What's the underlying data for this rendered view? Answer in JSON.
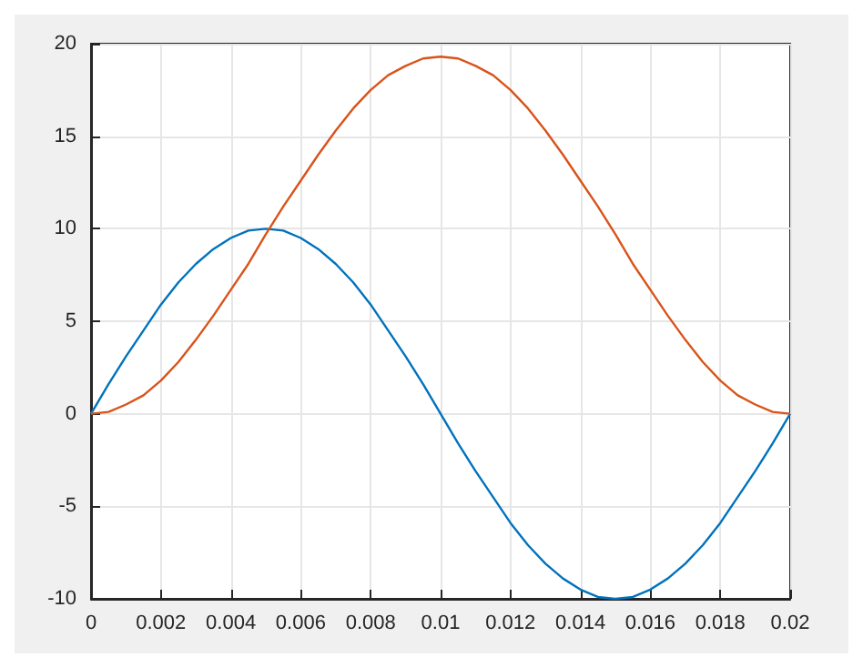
{
  "chart_data": {
    "type": "line",
    "x": [
      0,
      0.0005,
      0.001,
      0.0015,
      0.002,
      0.0025,
      0.003,
      0.0035,
      0.004,
      0.0045,
      0.005,
      0.0055,
      0.006,
      0.0065,
      0.007,
      0.0075,
      0.008,
      0.0085,
      0.009,
      0.0095,
      0.01,
      0.0105,
      0.011,
      0.0115,
      0.012,
      0.0125,
      0.013,
      0.0135,
      0.014,
      0.0145,
      0.015,
      0.0155,
      0.016,
      0.0165,
      0.017,
      0.0175,
      0.018,
      0.0185,
      0.019,
      0.0195,
      0.02
    ],
    "series": [
      {
        "color": "#0072bd",
        "values": [
          0,
          1.6,
          3.1,
          4.5,
          5.9,
          7.1,
          8.1,
          8.9,
          9.5,
          9.9,
          10,
          9.9,
          9.5,
          8.9,
          8.1,
          7.1,
          5.9,
          4.5,
          3.1,
          1.6,
          0,
          -1.6,
          -3.1,
          -4.5,
          -5.9,
          -7.1,
          -8.1,
          -8.9,
          -9.5,
          -9.9,
          -10,
          -9.9,
          -9.5,
          -8.9,
          -8.1,
          -7.1,
          -5.9,
          -4.5,
          -3.1,
          -1.6,
          0
        ]
      },
      {
        "color": "#d95319",
        "values": [
          0,
          0.1,
          0.5,
          1,
          1.8,
          2.8,
          4,
          5.3,
          6.7,
          8.1,
          9.7,
          11.2,
          12.6,
          14,
          15.3,
          16.5,
          17.5,
          18.3,
          18.8,
          19.2,
          19.3,
          19.2,
          18.8,
          18.3,
          17.5,
          16.5,
          15.3,
          14,
          12.6,
          11.2,
          9.7,
          8.1,
          6.7,
          5.3,
          4,
          2.8,
          1.8,
          1,
          0.5,
          0.1,
          0
        ]
      }
    ],
    "xlim": [
      0,
      0.02
    ],
    "xticks": [
      0,
      0.002,
      0.004,
      0.006,
      0.008,
      0.01,
      0.012,
      0.014,
      0.016,
      0.018,
      0.02
    ],
    "ylim": [
      -10,
      20
    ],
    "yticks": [
      -10,
      -5,
      0,
      5,
      10,
      15,
      20
    ],
    "grid": true,
    "marker": "none",
    "line_style": "solid"
  }
}
